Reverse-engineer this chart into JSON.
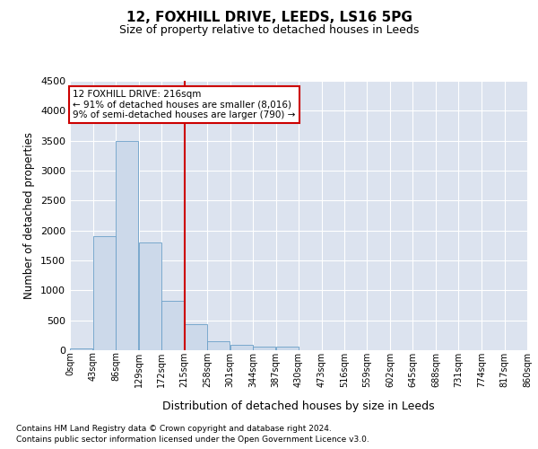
{
  "title": "12, FOXHILL DRIVE, LEEDS, LS16 5PG",
  "subtitle": "Size of property relative to detached houses in Leeds",
  "xlabel": "Distribution of detached houses by size in Leeds",
  "ylabel": "Number of detached properties",
  "bar_color": "#ccd9ea",
  "bar_edge_color": "#6a9fc8",
  "background_color": "#ffffff",
  "plot_bg_color": "#dce3ef",
  "grid_color": "#ffffff",
  "bin_edges": [
    0,
    43,
    86,
    129,
    172,
    215,
    258,
    301,
    344,
    387,
    430,
    473,
    516,
    559,
    602,
    645,
    688,
    731,
    774,
    817,
    860
  ],
  "bar_heights": [
    30,
    1900,
    3500,
    1800,
    830,
    440,
    155,
    95,
    65,
    55,
    0,
    0,
    0,
    0,
    0,
    0,
    0,
    0,
    0,
    0
  ],
  "tick_labels": [
    "0sqm",
    "43sqm",
    "86sqm",
    "129sqm",
    "172sqm",
    "215sqm",
    "258sqm",
    "301sqm",
    "344sqm",
    "387sqm",
    "430sqm",
    "473sqm",
    "516sqm",
    "559sqm",
    "602sqm",
    "645sqm",
    "688sqm",
    "731sqm",
    "774sqm",
    "817sqm",
    "860sqm"
  ],
  "vline_x": 216,
  "vline_color": "#cc0000",
  "ylim": [
    0,
    4500
  ],
  "yticks": [
    0,
    500,
    1000,
    1500,
    2000,
    2500,
    3000,
    3500,
    4000,
    4500
  ],
  "annotation_title": "12 FOXHILL DRIVE: 216sqm",
  "annotation_line1": "← 91% of detached houses are smaller (8,016)",
  "annotation_line2": "9% of semi-detached houses are larger (790) →",
  "annotation_box_color": "#ffffff",
  "annotation_box_edge": "#cc0000",
  "footnote1": "Contains HM Land Registry data © Crown copyright and database right 2024.",
  "footnote2": "Contains public sector information licensed under the Open Government Licence v3.0."
}
